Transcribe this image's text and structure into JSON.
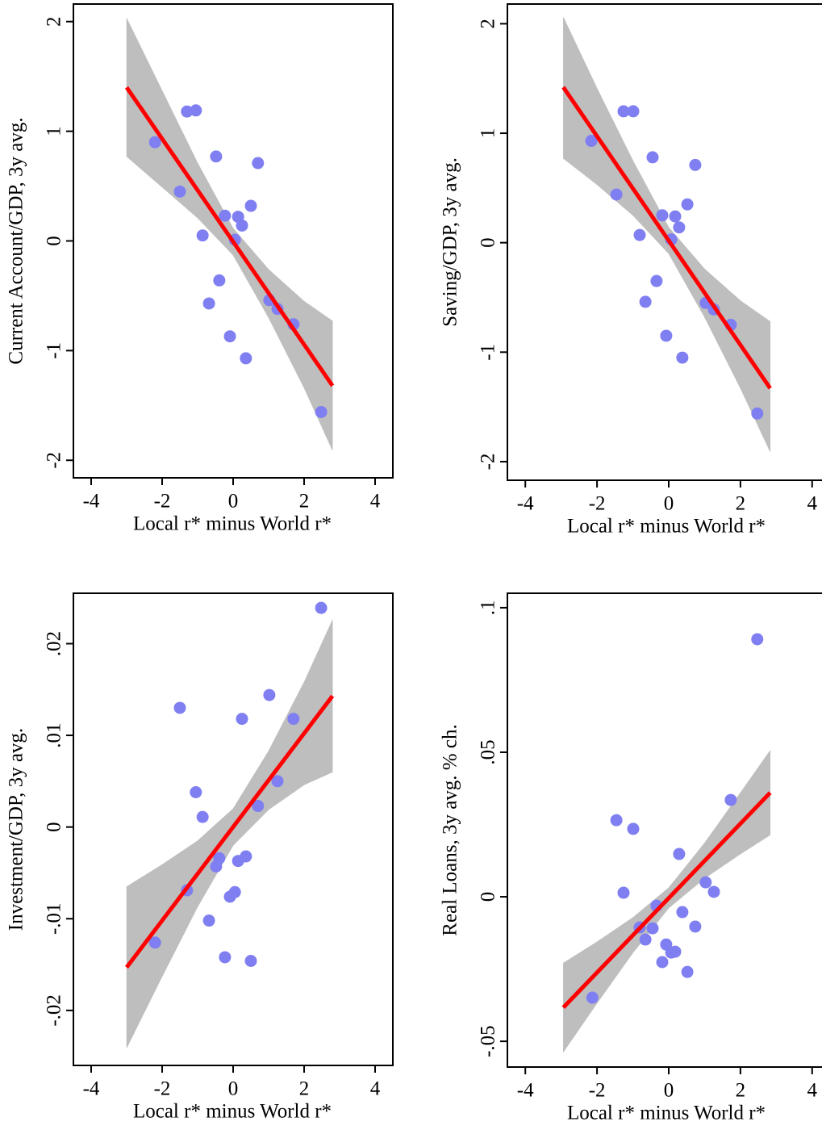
{
  "chart_data": [
    {
      "type": "scatter",
      "x_label": "Local r* minus World r*",
      "y_label": "Current Account/GDP, 3y avg.",
      "xlim": [
        -4.5,
        4.5
      ],
      "ylim": [
        -2.16,
        2.16
      ],
      "xticks": [
        -4,
        -2,
        0,
        2,
        4
      ],
      "yticks": [
        2,
        1,
        0,
        -1,
        -2
      ],
      "color": "#7f7ff2",
      "fit_color": "#ff0000",
      "band_color": "#bebebe",
      "x": [
        -2.2,
        -1.5,
        -1.3,
        -1.05,
        -0.86,
        -0.68,
        -0.48,
        -0.39,
        -0.23,
        -0.09,
        0.05,
        0.14,
        0.25,
        0.36,
        0.5,
        0.7,
        1.02,
        1.25,
        1.7,
        2.48
      ],
      "values": [
        0.9,
        0.45,
        1.18,
        1.19,
        0.05,
        -0.57,
        0.77,
        -0.36,
        0.23,
        -0.87,
        0.01,
        0.22,
        0.14,
        -1.07,
        0.32,
        0.71,
        -0.54,
        -0.62,
        -0.76,
        -1.56
      ],
      "fit": {
        "x": [
          -3.0,
          2.8
        ],
        "values": [
          1.4,
          -1.32
        ]
      },
      "band": {
        "x": [
          -3,
          -2,
          -1,
          0,
          1,
          2,
          2.8
        ],
        "upper": [
          2.03,
          1.37,
          0.71,
          0.115,
          -0.26,
          -0.55,
          -0.73
        ],
        "lower": [
          0.77,
          0.49,
          0.21,
          -0.13,
          -0.7,
          -1.34,
          -1.91
        ]
      }
    },
    {
      "type": "scatter",
      "x_label": "Local r* minus World r*",
      "y_label": "Saving/GDP, 3y avg.",
      "xlim": [
        -4.5,
        4.5
      ],
      "ylim": [
        -2.17,
        2.18
      ],
      "xticks": [
        -4,
        -2,
        0,
        2,
        4
      ],
      "yticks": [
        2,
        1,
        0,
        -1,
        -2
      ],
      "color": "#7f7ff2",
      "fit_color": "#ff0000",
      "band_color": "#bebebe",
      "x": [
        -2.16,
        -1.46,
        -1.26,
        -0.99,
        -0.81,
        -0.65,
        -0.45,
        -0.34,
        -0.18,
        -0.07,
        0.07,
        0.18,
        0.29,
        0.38,
        0.52,
        0.74,
        1.03,
        1.26,
        1.73,
        2.47
      ],
      "values": [
        0.93,
        0.44,
        1.2,
        1.2,
        0.07,
        -0.54,
        0.78,
        -0.35,
        0.25,
        -0.85,
        0.03,
        0.24,
        0.14,
        -1.05,
        0.35,
        0.71,
        -0.55,
        -0.61,
        -0.75,
        -1.56
      ],
      "fit": {
        "x": [
          -2.94,
          2.83
        ],
        "values": [
          1.42,
          -1.33
        ]
      },
      "band": {
        "x": [
          -2.94,
          -2,
          -1,
          0,
          1,
          2,
          2.83
        ],
        "upper": [
          2.06,
          1.41,
          0.75,
          0.14,
          -0.24,
          -0.53,
          -0.72
        ],
        "lower": [
          0.77,
          0.53,
          0.25,
          -0.1,
          -0.68,
          -1.33,
          -1.91
        ]
      }
    },
    {
      "type": "scatter",
      "x_label": "Local r* minus World r*",
      "y_label": "Investment/GDP, 3y avg.",
      "xlim": [
        -4.5,
        4.5
      ],
      "ylim": [
        -0.026,
        0.0255
      ],
      "xticks": [
        -4,
        -2,
        0,
        2,
        4
      ],
      "yticks": [
        {
          "value": 0.02,
          "label": ".02"
        },
        {
          "value": 0.01,
          "label": ".01"
        },
        0,
        {
          "value": -0.01,
          "label": "-.01"
        },
        {
          "value": -0.02,
          "label": "-.02"
        }
      ],
      "color": "#7f7ff2",
      "fit_color": "#ff0000",
      "band_color": "#bebebe",
      "x": [
        -2.2,
        -1.5,
        -1.3,
        -1.05,
        -0.86,
        -0.68,
        -0.48,
        -0.39,
        -0.23,
        -0.09,
        0.05,
        0.14,
        0.25,
        0.36,
        0.5,
        0.7,
        1.02,
        1.25,
        1.7,
        2.48
      ],
      "values": [
        -0.0126,
        0.013,
        -0.0069,
        0.0038,
        0.0011,
        -0.0102,
        -0.0043,
        -0.0034,
        -0.0142,
        -0.0076,
        -0.0071,
        -0.0037,
        0.0118,
        -0.0032,
        -0.0146,
        0.0023,
        0.0144,
        0.005,
        0.0118,
        0.0239
      ],
      "fit": {
        "x": [
          -3.0,
          2.8
        ],
        "values": [
          -0.0153,
          0.0143
        ]
      },
      "band": {
        "x": [
          -3,
          -2,
          -1,
          0,
          1,
          2,
          2.8
        ],
        "upper": [
          -0.0065,
          -0.0041,
          -0.0015,
          0.002,
          0.0083,
          0.0158,
          0.0226
        ],
        "lower": [
          -0.0241,
          -0.0163,
          -0.0087,
          -0.002,
          0.0019,
          0.0046,
          0.006
        ]
      }
    },
    {
      "type": "scatter",
      "x_label": "Local r* minus World r*",
      "y_label": "Real Loans, 3y avg. % ch.",
      "xlim": [
        -4.5,
        4.5
      ],
      "ylim": [
        -0.0589,
        0.105
      ],
      "xticks": [
        -4,
        -2,
        0,
        2,
        4
      ],
      "yticks": [
        {
          "value": 0.1,
          "label": ".1"
        },
        {
          "value": 0.05,
          "label": ".05"
        },
        0,
        {
          "value": -0.05,
          "label": "-.05"
        }
      ],
      "color": "#7f7ff2",
      "fit_color": "#ff0000",
      "band_color": "#bebebe",
      "x": [
        -2.13,
        -1.46,
        -1.26,
        -0.99,
        -0.81,
        -0.65,
        -0.45,
        -0.34,
        -0.18,
        -0.07,
        0.07,
        0.18,
        0.29,
        0.38,
        0.52,
        0.74,
        1.03,
        1.26,
        1.73,
        2.47
      ],
      "values": [
        -0.0349,
        0.0265,
        0.0014,
        0.0235,
        -0.0106,
        -0.0148,
        -0.0109,
        -0.0031,
        -0.0226,
        -0.0165,
        -0.0193,
        -0.019,
        0.0148,
        -0.0053,
        -0.026,
        -0.0103,
        0.005,
        0.0017,
        0.0335,
        0.0891
      ],
      "fit": {
        "x": [
          -2.94,
          2.83
        ],
        "values": [
          -0.0383,
          0.036
        ]
      },
      "band": {
        "x": [
          -2.94,
          -2,
          -1,
          0,
          1,
          2,
          2.83
        ],
        "upper": [
          -0.0229,
          -0.0156,
          -0.0072,
          0.0031,
          0.0186,
          0.036,
          0.0506
        ],
        "lower": [
          -0.0537,
          -0.0368,
          -0.0194,
          -0.0039,
          0.0064,
          0.0148,
          0.0214
        ]
      }
    }
  ]
}
